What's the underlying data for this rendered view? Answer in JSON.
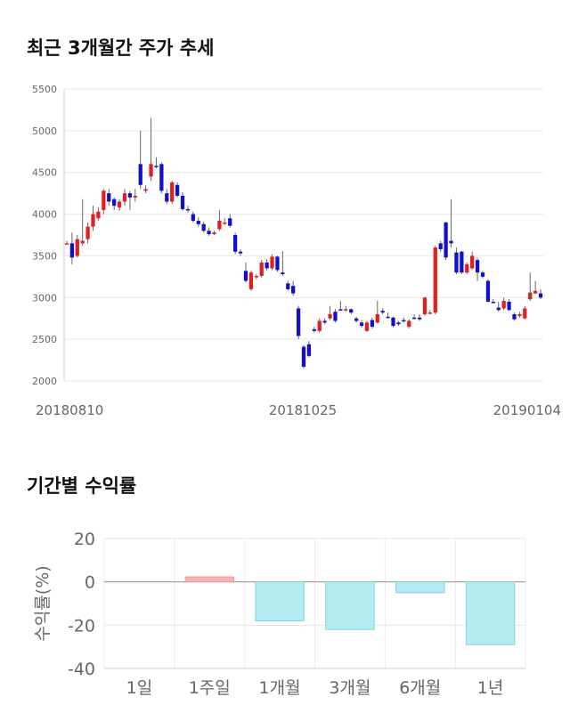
{
  "sections": {
    "price_title": "최근 3개월간 주가 추세",
    "return_title": "기간별 수익률"
  },
  "chart_data": [
    {
      "type": "candlestick",
      "title": "최근 3개월간 주가 추세",
      "ylim": [
        2000,
        5500
      ],
      "yticks": [
        2000,
        2500,
        3000,
        3500,
        4000,
        4500,
        5000,
        5500
      ],
      "xticks": [
        "20180810",
        "20181025",
        "20190104"
      ],
      "grid": true,
      "up_color": "#e02020",
      "down_color": "#1010cc",
      "candles": [
        [
          3650,
          3650,
          3680,
          3640
        ],
        [
          3650,
          3480,
          3780,
          3400
        ],
        [
          3500,
          3700,
          3750,
          3480
        ],
        [
          3650,
          3680,
          4180,
          3620
        ],
        [
          3700,
          3850,
          3900,
          3650
        ],
        [
          3850,
          4000,
          4100,
          3800
        ],
        [
          3950,
          4030,
          4080,
          3920
        ],
        [
          4050,
          4280,
          4300,
          4000
        ],
        [
          4250,
          4150,
          4300,
          4100
        ],
        [
          4180,
          4100,
          4200,
          4050
        ],
        [
          4080,
          4150,
          4180,
          4040
        ],
        [
          4150,
          4250,
          4300,
          4100
        ],
        [
          4250,
          4200,
          4280,
          4050
        ],
        [
          4200,
          4220,
          4300,
          4150
        ],
        [
          4600,
          4350,
          5000,
          4300
        ],
        [
          4280,
          4300,
          4350,
          4250
        ],
        [
          4450,
          4600,
          5150,
          4400
        ],
        [
          4580,
          4570,
          4680,
          4550
        ],
        [
          4600,
          4280,
          4620,
          4250
        ],
        [
          4250,
          4150,
          4300,
          4120
        ],
        [
          4150,
          4380,
          4400,
          4120
        ],
        [
          4350,
          4220,
          4380,
          4200
        ],
        [
          4220,
          4060,
          4260,
          4040
        ],
        [
          4060,
          4050,
          4100,
          4020
        ],
        [
          4000,
          3920,
          4030,
          3900
        ],
        [
          3920,
          3880,
          3960,
          3850
        ],
        [
          3880,
          3800,
          3910,
          3780
        ],
        [
          3800,
          3760,
          3840,
          3740
        ],
        [
          3760,
          3780,
          3800,
          3750
        ],
        [
          3820,
          3920,
          4050,
          3800
        ],
        [
          3900,
          3900,
          3950,
          3870
        ],
        [
          3950,
          3860,
          4000,
          3840
        ],
        [
          3750,
          3550,
          3780,
          3520
        ],
        [
          3550,
          3530,
          3580,
          3500
        ],
        [
          3320,
          3200,
          3420,
          3180
        ],
        [
          3100,
          3300,
          3320,
          3080
        ],
        [
          3250,
          3260,
          3280,
          3220
        ],
        [
          3260,
          3420,
          3450,
          3240
        ],
        [
          3420,
          3350,
          3460,
          3320
        ],
        [
          3350,
          3490,
          3520,
          3330
        ],
        [
          3490,
          3330,
          3500,
          3310
        ],
        [
          3300,
          3280,
          3560,
          3260
        ],
        [
          3170,
          3100,
          3200,
          3080
        ],
        [
          3140,
          3050,
          3200,
          3020
        ],
        [
          2870,
          2540,
          2900,
          2500
        ],
        [
          2410,
          2170,
          2430,
          2150
        ],
        [
          2440,
          2300,
          2480,
          2280
        ],
        [
          2620,
          2600,
          2650,
          2580
        ],
        [
          2600,
          2720,
          2750,
          2580
        ],
        [
          2720,
          2700,
          2750,
          2680
        ],
        [
          2750,
          2800,
          2900,
          2730
        ],
        [
          2830,
          2720,
          2860,
          2700
        ],
        [
          2860,
          2850,
          2960,
          2840
        ],
        [
          2850,
          2860,
          2900,
          2830
        ],
        [
          2860,
          2820,
          2870,
          2800
        ],
        [
          2750,
          2720,
          2770,
          2700
        ],
        [
          2700,
          2660,
          2730,
          2640
        ],
        [
          2600,
          2700,
          2720,
          2590
        ],
        [
          2730,
          2650,
          2760,
          2630
        ],
        [
          2700,
          2800,
          2960,
          2690
        ],
        [
          2840,
          2820,
          2870,
          2800
        ],
        [
          2770,
          2760,
          2820,
          2750
        ],
        [
          2760,
          2660,
          2770,
          2640
        ],
        [
          2700,
          2680,
          2720,
          2660
        ],
        [
          2730,
          2720,
          2760,
          2700
        ],
        [
          2650,
          2720,
          2740,
          2630
        ],
        [
          2760,
          2750,
          2800,
          2740
        ],
        [
          2760,
          2740,
          2800,
          2720
        ],
        [
          2800,
          3000,
          3010,
          2780
        ],
        [
          2820,
          2820,
          2850,
          2800
        ],
        [
          2820,
          3600,
          3620,
          2800
        ],
        [
          3650,
          3580,
          3680,
          3550
        ],
        [
          3900,
          3480,
          3910,
          3450
        ],
        [
          3680,
          3650,
          4180,
          3600
        ],
        [
          3540,
          3300,
          3600,
          3280
        ],
        [
          3550,
          3300,
          3560,
          3280
        ],
        [
          3300,
          3400,
          3420,
          3280
        ],
        [
          3350,
          3500,
          3550,
          3330
        ],
        [
          3450,
          3300,
          3480,
          3200
        ],
        [
          3300,
          3250,
          3320,
          3230
        ],
        [
          3200,
          2950,
          3220,
          2940
        ],
        [
          2950,
          2940,
          2980,
          2930
        ],
        [
          2880,
          2850,
          2950,
          2830
        ],
        [
          2870,
          2960,
          3000,
          2850
        ],
        [
          2950,
          2850,
          2980,
          2840
        ],
        [
          2800,
          2740,
          2820,
          2720
        ],
        [
          2780,
          2800,
          2830,
          2760
        ],
        [
          2750,
          2870,
          2900,
          2740
        ],
        [
          2980,
          3060,
          3300,
          2960
        ],
        [
          3050,
          3080,
          3200,
          3040
        ],
        [
          3050,
          3000,
          3100,
          2980
        ]
      ]
    },
    {
      "type": "bar",
      "title": "기간별 수익률",
      "ylabel": "수익률(%)",
      "ylim": [
        -40,
        20
      ],
      "yticks": [
        20,
        0,
        -20,
        -40
      ],
      "categories": [
        "1일",
        "1주일",
        "1개월",
        "3개월",
        "6개월",
        "1년"
      ],
      "values": [
        0,
        2.3,
        -18,
        -22,
        -5,
        -29
      ],
      "colors": {
        "positive": "#f7b3b6",
        "positive_edge": "#e89a9e",
        "negative": "#b3ebf2",
        "negative_edge": "#8ccfd9"
      },
      "grid": true
    }
  ]
}
